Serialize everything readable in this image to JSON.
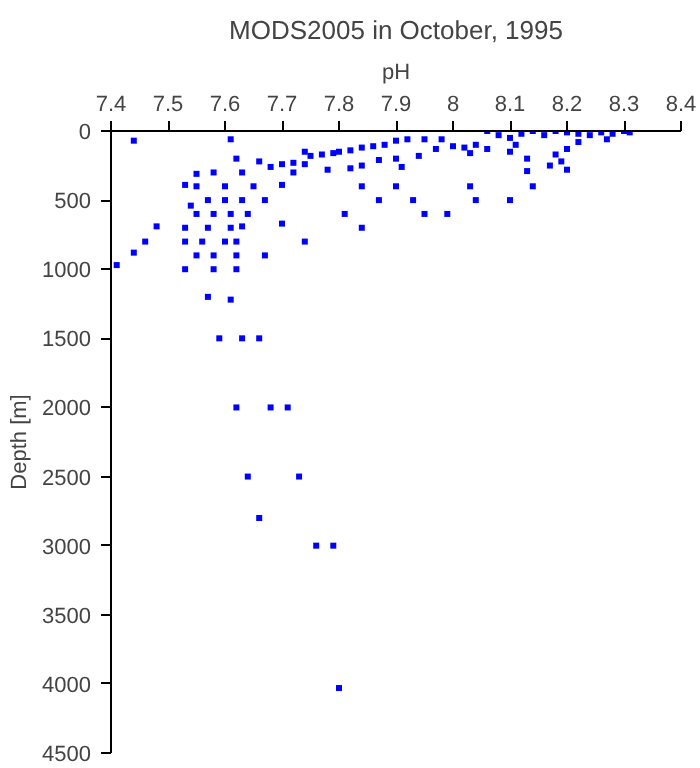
{
  "chart_data": {
    "type": "scatter",
    "title": "MODS2005 in October, 1995",
    "xlabel": "pH",
    "ylabel": "Depth [m]",
    "x": [
      7.44,
      7.61,
      7.62,
      7.66,
      7.68,
      7.7,
      7.72,
      7.74,
      7.75,
      7.77,
      7.79,
      7.8,
      7.82,
      7.84,
      7.86,
      7.88,
      7.9,
      7.92,
      7.95,
      7.98,
      8.0,
      8.02,
      8.04,
      8.06,
      8.08,
      8.1,
      8.12,
      8.14,
      8.16,
      8.18,
      8.2,
      8.22,
      8.24,
      8.26,
      8.28,
      8.3,
      8.31,
      8.27,
      8.22,
      8.2,
      8.18,
      8.19,
      8.17,
      8.2,
      8.13,
      8.13,
      8.14,
      8.1,
      8.11,
      8.06,
      8.03,
      7.97,
      7.94,
      7.9,
      7.91,
      7.87,
      7.84,
      7.82,
      7.78,
      7.74,
      7.72,
      7.63,
      7.58,
      7.55,
      7.53,
      7.55,
      7.6,
      7.65,
      7.7,
      7.57,
      7.6,
      7.63,
      7.67,
      7.54,
      7.55,
      7.58,
      7.61,
      7.64,
      7.53,
      7.57,
      7.61,
      7.63,
      7.7,
      7.48,
      7.46,
      7.53,
      7.56,
      7.6,
      7.62,
      7.74,
      7.44,
      7.55,
      7.58,
      7.62,
      7.67,
      7.41,
      7.53,
      7.58,
      7.62,
      7.57,
      7.61,
      7.84,
      7.84,
      7.81,
      7.87,
      7.9,
      7.93,
      7.95,
      7.99,
      8.03,
      8.04,
      8.1,
      7.59,
      7.63,
      7.66,
      7.62,
      7.68,
      7.71,
      7.64,
      7.73,
      7.66,
      7.76,
      7.79,
      7.8
    ],
    "values": [
      70,
      60,
      200,
      220,
      260,
      240,
      230,
      150,
      180,
      170,
      160,
      150,
      140,
      120,
      110,
      100,
      70,
      60,
      60,
      60,
      110,
      120,
      100,
      0,
      30,
      50,
      20,
      0,
      30,
      0,
      10,
      20,
      30,
      10,
      20,
      0,
      10,
      60,
      80,
      130,
      170,
      220,
      250,
      280,
      200,
      290,
      400,
      150,
      100,
      130,
      160,
      130,
      180,
      200,
      260,
      210,
      250,
      270,
      280,
      240,
      300,
      300,
      300,
      310,
      390,
      400,
      400,
      400,
      390,
      500,
      500,
      500,
      500,
      540,
      600,
      600,
      600,
      600,
      700,
      700,
      700,
      690,
      670,
      690,
      800,
      800,
      800,
      800,
      800,
      800,
      880,
      900,
      900,
      900,
      900,
      970,
      1000,
      1000,
      1000,
      1200,
      1220,
      400,
      700,
      600,
      500,
      400,
      500,
      600,
      600,
      400,
      500,
      500,
      1500,
      1500,
      1500,
      2000,
      2000,
      2000,
      2500,
      2500,
      2800,
      3000,
      3000,
      4030
    ],
    "color": "#0000ff",
    "marker": "square",
    "xlim": [
      7.4,
      8.4
    ],
    "xticks": [
      7.4,
      7.5,
      7.6,
      7.7,
      7.8,
      7.9,
      8,
      8.1,
      8.2,
      8.3,
      8.4
    ],
    "ylim": [
      4500,
      0
    ],
    "yticks": [
      0,
      500,
      1000,
      1500,
      2000,
      2500,
      3000,
      3500,
      4000,
      4500
    ],
    "grid": false
  }
}
